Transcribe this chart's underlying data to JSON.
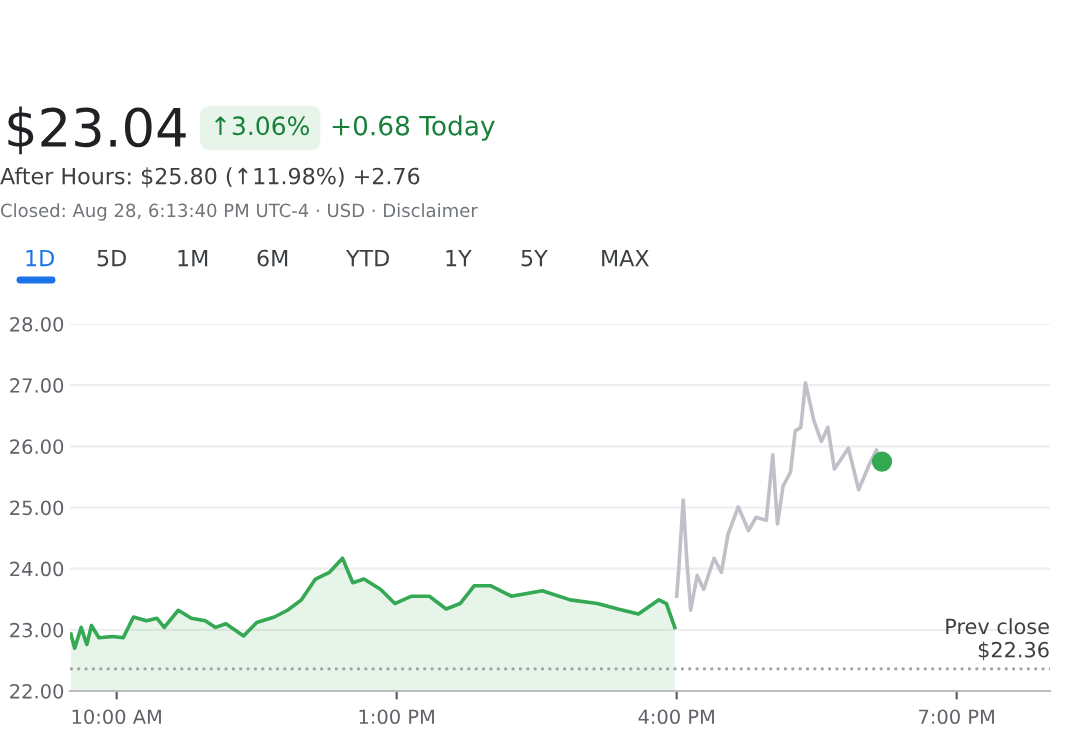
{
  "chart_data": {
    "type": "line",
    "annotations": [
      "$23.04",
      "↑3.06%",
      "+0.68 Today",
      "After Hours: $25.80 (↑11.98%) +2.76",
      "Closed: Aug 28, 6:13:40 PM UTC-4 · USD · Disclaimer",
      "1D",
      "5D",
      "1M",
      "6M",
      "YTD",
      "1Y",
      "5Y",
      "MAX"
    ],
    "series": [
      {
        "type": "area",
        "color": "#34a853",
        "x": [
          9.51,
          9.55,
          9.62,
          9.68,
          9.73,
          9.81,
          9.96,
          10.07,
          10.18,
          10.32,
          10.43,
          10.51,
          10.66,
          10.8,
          10.95,
          11.06,
          11.17,
          11.36,
          11.5,
          11.69,
          11.83,
          11.98,
          12.13,
          12.28,
          12.42,
          12.53,
          12.65,
          12.83,
          12.98,
          13.16,
          13.35,
          13.53,
          13.68,
          13.83,
          14.01,
          14.23,
          14.56,
          14.86,
          15.15,
          15.37,
          15.59,
          15.81,
          15.89,
          15.98
        ],
        "values": [
          22.93,
          22.7,
          23.04,
          22.76,
          23.07,
          22.87,
          22.89,
          22.87,
          23.21,
          23.15,
          23.19,
          23.04,
          23.32,
          23.19,
          23.15,
          23.04,
          23.1,
          22.9,
          23.12,
          23.21,
          23.32,
          23.49,
          23.83,
          23.94,
          24.17,
          23.77,
          23.83,
          23.66,
          23.43,
          23.55,
          23.55,
          23.34,
          23.43,
          23.72,
          23.72,
          23.55,
          23.64,
          23.49,
          23.43,
          23.34,
          23.26,
          23.49,
          23.43,
          23.04
        ]
      },
      {
        "color": "#c0c0c8",
        "x": [
          16.0,
          16.02,
          16.07,
          16.11,
          16.15,
          16.22,
          16.29,
          16.4,
          16.48,
          16.55,
          16.66,
          16.77,
          16.85,
          16.96,
          17.03,
          17.08,
          17.14,
          17.22,
          17.27,
          17.33,
          17.38,
          17.47,
          17.55,
          17.62,
          17.69,
          17.84,
          17.95,
          18.06,
          18.14,
          18.2
        ],
        "values": [
          23.55,
          23.94,
          25.12,
          24.11,
          23.32,
          23.89,
          23.66,
          24.17,
          23.94,
          24.56,
          25.01,
          24.62,
          24.84,
          24.79,
          25.86,
          24.73,
          25.35,
          25.58,
          26.25,
          26.31,
          27.04,
          26.42,
          26.08,
          26.31,
          25.63,
          25.97,
          25.29,
          25.69,
          25.94,
          25.75
        ]
      },
      {
        "type": "scatter",
        "color": "#34a853",
        "marker": "circle",
        "x": [
          18.2
        ],
        "values": [
          25.75
        ]
      }
    ],
    "xlim": [
      9.5,
      20
    ],
    "ylim": [
      22,
      28
    ],
    "xticks": [
      {
        "value": 10,
        "label": "10:00 AM"
      },
      {
        "value": 13,
        "label": "1:00 PM"
      },
      {
        "value": 16,
        "label": "4:00 PM"
      },
      {
        "value": 19,
        "label": "7:00 PM"
      }
    ],
    "yticks": [
      {
        "value": 22,
        "label": "22.00"
      },
      {
        "value": 23,
        "label": "23.00"
      },
      {
        "value": 24,
        "label": "24.00"
      },
      {
        "value": 25,
        "label": "25.00"
      },
      {
        "value": 26,
        "label": "26.00"
      },
      {
        "value": 27,
        "label": "27.00"
      },
      {
        "value": 28,
        "label": "28.00"
      }
    ],
    "grid": "y",
    "ref_lines": [
      {
        "axis": "y",
        "value": 22.36,
        "label": "Prev close\n$22.36",
        "color": "#9e9e9e",
        "line_style": "dotted"
      }
    ]
  }
}
